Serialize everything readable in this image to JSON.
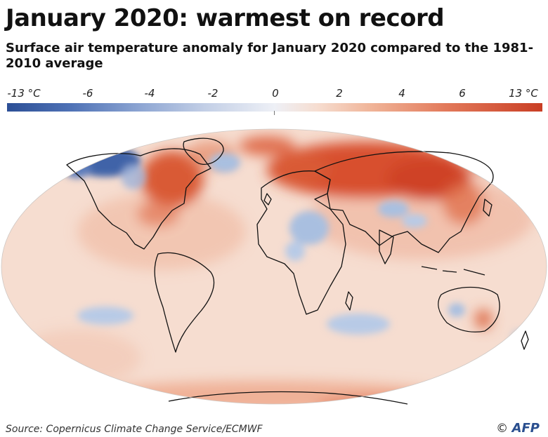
{
  "title": "January 2020: warmest on record",
  "subtitle": "Surface air temperature anomaly for January 2020 compared to the 1981-2010 average",
  "scale": {
    "ticks": [
      "-13 °C",
      "-6",
      "-4",
      "-2",
      "0",
      "2",
      "4",
      "6",
      "13 °C"
    ],
    "colors": {
      "min": "#2c4f96",
      "neutral": "#eef0f6",
      "max": "#c93e24"
    }
  },
  "map": {
    "ocean_color": "#f6ddd0",
    "warm_color": "#d8502f",
    "cool_color": "#a9bfe0"
  },
  "footer": {
    "source": "Source: Copernicus Climate Change Service/ECMWF",
    "copyright_symbol": "©",
    "agency": "AFP"
  }
}
